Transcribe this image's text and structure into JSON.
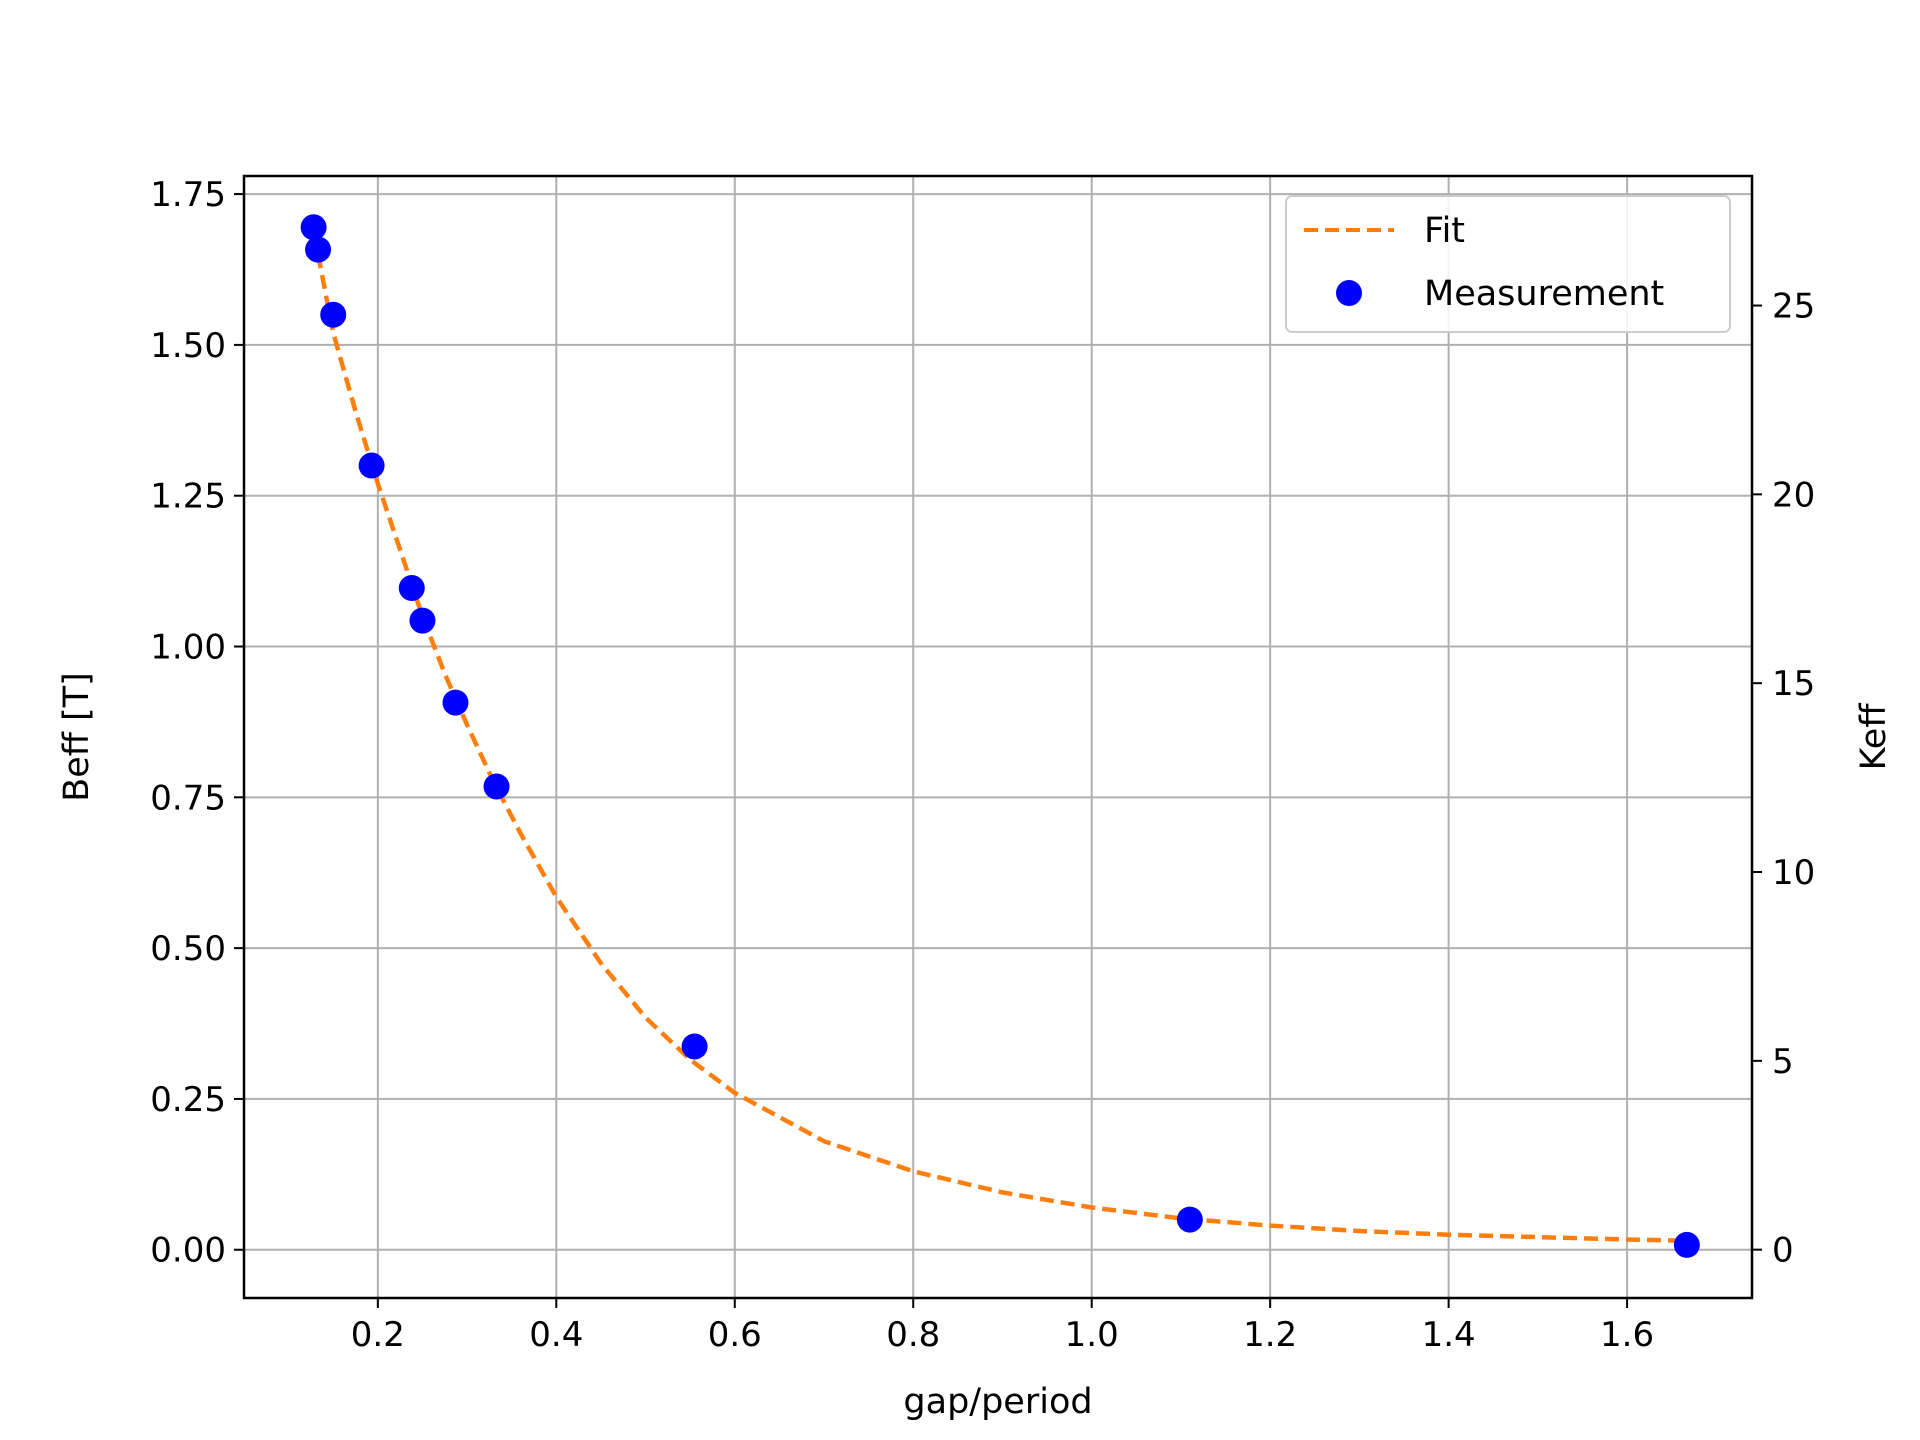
{
  "chart_data": {
    "type": "scatter",
    "title": "",
    "xlabel": "gap/period",
    "ylabel": "Beff [T]",
    "y2label": "Keff",
    "xlim": [
      0.05,
      1.74
    ],
    "ylim": [
      -0.08,
      1.78
    ],
    "y2lim": [
      -1.28,
      28.43
    ],
    "xticks": [
      0.2,
      0.4,
      0.6,
      0.8,
      1.0,
      1.2,
      1.4,
      1.6
    ],
    "xtick_labels": [
      "0.2",
      "0.4",
      "0.6",
      "0.8",
      "1.0",
      "1.2",
      "1.4",
      "1.6"
    ],
    "yticks": [
      0.0,
      0.25,
      0.5,
      0.75,
      1.0,
      1.25,
      1.5,
      1.75
    ],
    "ytick_labels": [
      "0.00",
      "0.25",
      "0.50",
      "0.75",
      "1.00",
      "1.25",
      "1.50",
      "1.75"
    ],
    "y2ticks": [
      0,
      5,
      10,
      15,
      20,
      25
    ],
    "y2tick_labels": [
      "0",
      "5",
      "10",
      "15",
      "20",
      "25"
    ],
    "grid": true,
    "legend_position": "top-right",
    "series": [
      {
        "name": "Fit",
        "style": "dashed-line",
        "color": "#ff7f0e",
        "x": [
          0.133,
          0.15,
          0.175,
          0.2,
          0.225,
          0.25,
          0.275,
          0.3,
          0.33,
          0.36,
          0.4,
          0.45,
          0.5,
          0.55,
          0.6,
          0.7,
          0.8,
          0.9,
          1.0,
          1.1,
          1.2,
          1.3,
          1.4,
          1.5,
          1.6,
          1.667
        ],
        "y": [
          1.65,
          1.52,
          1.39,
          1.27,
          1.16,
          1.05,
          0.955,
          0.87,
          0.775,
          0.69,
          0.585,
          0.475,
          0.385,
          0.315,
          0.26,
          0.18,
          0.13,
          0.095,
          0.07,
          0.052,
          0.04,
          0.031,
          0.025,
          0.021,
          0.017,
          0.015
        ]
      },
      {
        "name": "Measurement",
        "style": "markers",
        "color": "#0000ff",
        "x": [
          0.128,
          0.133,
          0.15,
          0.193,
          0.238,
          0.25,
          0.287,
          0.333,
          0.555,
          1.11,
          1.667
        ],
        "y": [
          1.695,
          1.658,
          1.55,
          1.3,
          1.097,
          1.043,
          0.907,
          0.768,
          0.337,
          0.05,
          0.008
        ]
      }
    ]
  }
}
